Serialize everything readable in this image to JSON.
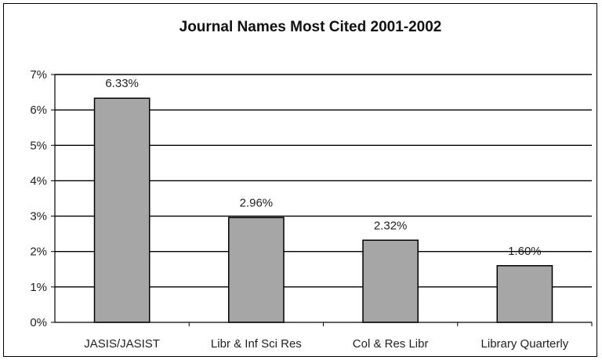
{
  "chart_data": {
    "type": "bar",
    "title": "Journal Names Most Cited 2001-2002",
    "xlabel": "",
    "ylabel": "",
    "categories": [
      "JASIS/JASIST",
      "Libr & Inf Sci Res",
      "Col & Res Libr",
      "Library Quarterly"
    ],
    "values": [
      6.33,
      2.96,
      2.32,
      1.6
    ],
    "data_labels": [
      "6.33%",
      "2.96%",
      "2.32%",
      "1.60%"
    ],
    "ylim": [
      0,
      7
    ],
    "yticks": [
      0,
      1,
      2,
      3,
      4,
      5,
      6,
      7
    ],
    "ytick_labels": [
      "0%",
      "1%",
      "2%",
      "3%",
      "4%",
      "5%",
      "6%",
      "7%"
    ],
    "grid": true,
    "legend": "none",
    "colors": {
      "bar_fill": "#a6a6a6",
      "bar_stroke": "#000000",
      "grid": "#000000",
      "axis": "#000000"
    }
  }
}
